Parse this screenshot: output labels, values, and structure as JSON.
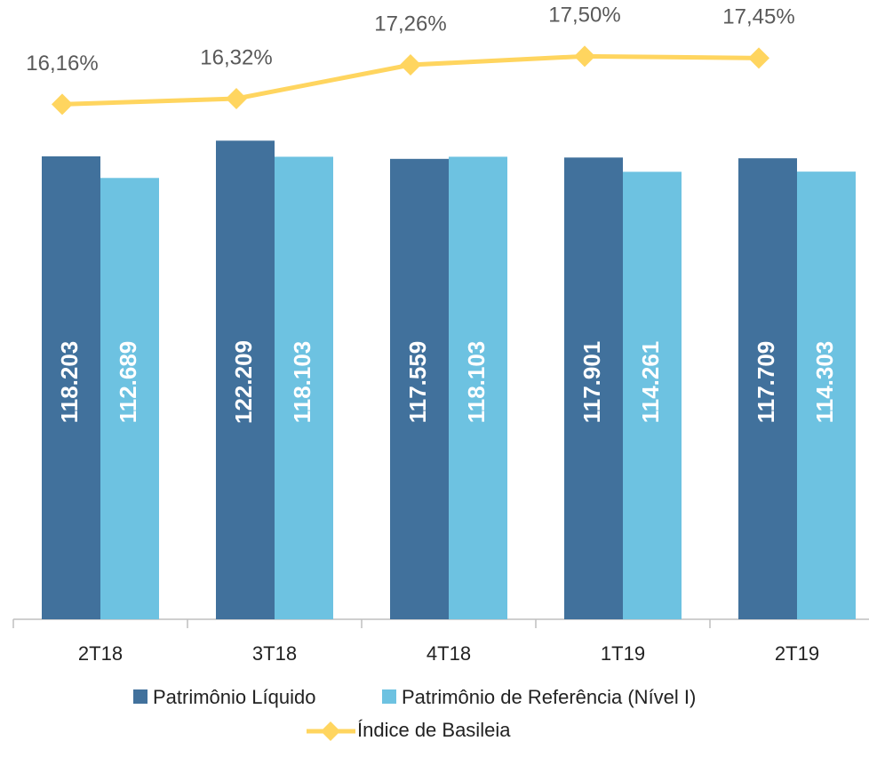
{
  "chart_data": {
    "type": "bar",
    "categories": [
      "2T18",
      "3T18",
      "4T18",
      "1T19",
      "2T19"
    ],
    "series": [
      {
        "name": "Patrimônio Líquido",
        "type": "bar",
        "color": "#41719c",
        "values": [
          118203,
          122209,
          117559,
          117901,
          117709
        ],
        "value_labels": [
          "118.203",
          "122.209",
          "117.559",
          "117.901",
          "117.709"
        ]
      },
      {
        "name": "Patrimônio de Referência (Nível I)",
        "type": "bar",
        "color": "#6dc2e1",
        "values": [
          112689,
          118103,
          118103,
          114261,
          114303
        ],
        "value_labels": [
          "112.689",
          "118.103",
          "118.103",
          "114.261",
          "114.303"
        ]
      },
      {
        "name": "Índice de Basileia",
        "type": "line",
        "axis": "y2",
        "color": "#ffd55f",
        "values": [
          16.16,
          16.32,
          17.26,
          17.5,
          17.45
        ],
        "value_labels": [
          "16,16%",
          "16,32%",
          "17,26%",
          "17,50%",
          "17,45%"
        ]
      }
    ],
    "ylim": [
      0,
      152000
    ],
    "y2lim": [
      1.8,
      18.4
    ],
    "legend": "bottom"
  }
}
